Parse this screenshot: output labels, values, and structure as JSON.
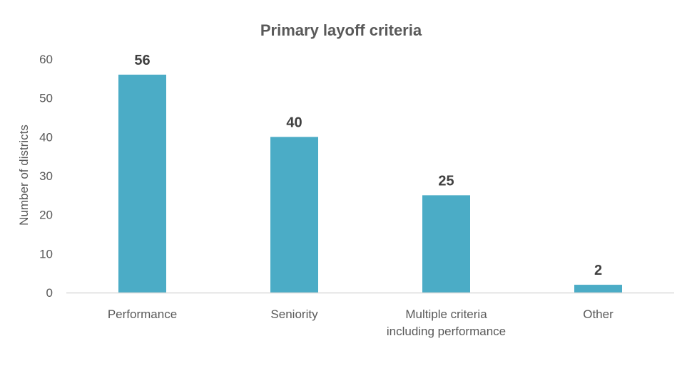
{
  "chart_data": {
    "type": "bar",
    "title": "Primary layoff criteria",
    "xlabel": "",
    "ylabel": "Number of districts",
    "categories": [
      [
        "Performance"
      ],
      [
        "Seniority"
      ],
      [
        "Multiple criteria",
        "including performance"
      ],
      [
        "Other"
      ]
    ],
    "values": [
      56,
      40,
      25,
      2
    ],
    "data_labels": [
      "56",
      "40",
      "25",
      "2"
    ],
    "ylim": [
      0,
      60
    ],
    "yticks": [
      0,
      10,
      20,
      30,
      40,
      50,
      60
    ],
    "grid": false,
    "legend": "none",
    "bar_color": "#4BACC6",
    "axis_color": "#D9D9D9"
  }
}
